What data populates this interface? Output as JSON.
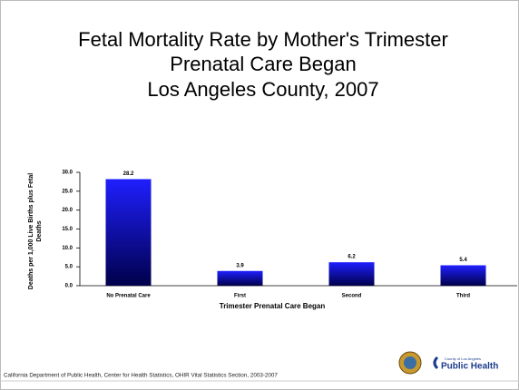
{
  "chart_data": {
    "type": "bar",
    "title": [
      "Fetal Mortality Rate by Mother's Trimester",
      "Prenatal Care Began",
      "Los Angeles County, 2007"
    ],
    "categories": [
      "No Prenatal Care",
      "First",
      "Second",
      "Third"
    ],
    "values": [
      28.2,
      3.9,
      6.2,
      5.4
    ],
    "color": "#1f1fff",
    "ylim": [
      0,
      30
    ],
    "yticks": [
      {
        "value": 0,
        "label": "0.0"
      },
      {
        "value": 5,
        "label": "5.0"
      },
      {
        "value": 10,
        "label": "10.0"
      },
      {
        "value": 15,
        "label": "15.0"
      },
      {
        "value": 20,
        "label": "20.0"
      },
      {
        "value": 25,
        "label": "25.0"
      },
      {
        "value": 30,
        "label": "30.0"
      }
    ],
    "x_label": "Trimester Prenatal Care Began",
    "y_label": [
      "Deaths per 1,000 Live Births plus Fetal",
      "Deaths"
    ],
    "source": "California Department of Public Health, Center for Health Statistics, OHIR Vital Statistics Section, 2003-2007",
    "logo": {
      "small": "County of Los Angeles",
      "large": "Public Health"
    }
  }
}
